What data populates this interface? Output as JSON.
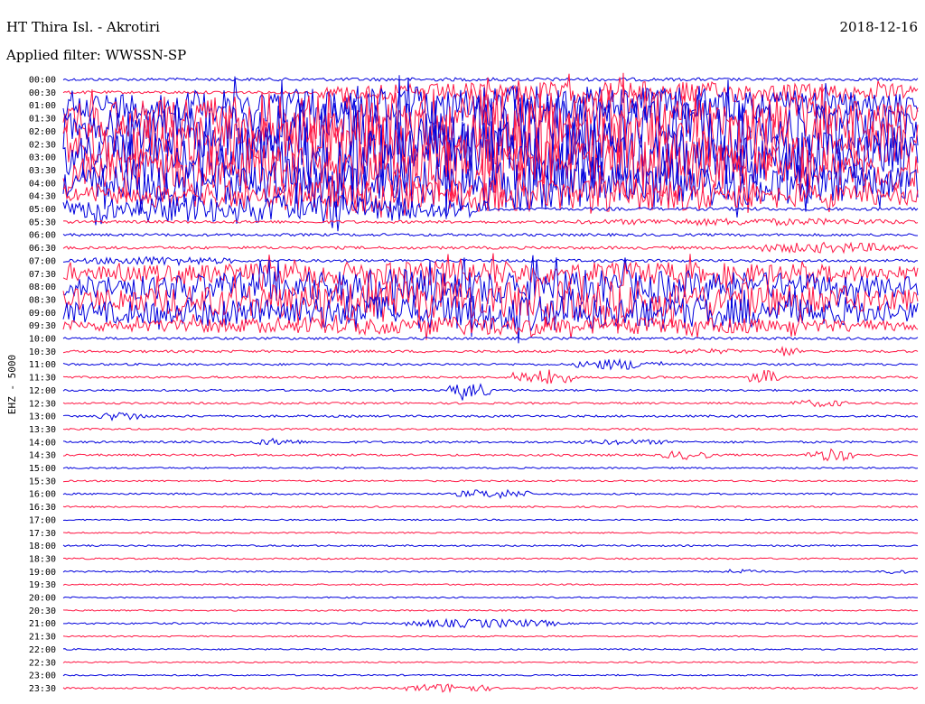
{
  "header": {
    "station": "HT Thira Isl. - Akrotiri",
    "date": "2018-12-16",
    "filter": "Applied filter: WWSSN-SP"
  },
  "channel_label": "EHZ - 5000",
  "colors": {
    "trace_a": "#0000dd",
    "trace_b": "#ff1744",
    "text": "#000000",
    "background": "#ffffff"
  },
  "chart_data": {
    "type": "line",
    "title": "HT Thira Isl. - Akrotiri",
    "subtitle": "Applied filter: WWSSN-SP",
    "ylabel": "EHZ - 5000",
    "xlabel": "",
    "grid": false,
    "row_colors": [
      "#0000dd",
      "#ff1744"
    ],
    "row_labels": [
      "00:00",
      "00:30",
      "01:00",
      "01:30",
      "02:00",
      "02:30",
      "03:00",
      "03:30",
      "04:00",
      "04:30",
      "05:00",
      "05:30",
      "06:00",
      "06:30",
      "07:00",
      "07:30",
      "08:00",
      "08:30",
      "09:00",
      "09:30",
      "10:00",
      "10:30",
      "11:00",
      "11:30",
      "12:00",
      "12:30",
      "13:00",
      "13:30",
      "14:00",
      "14:30",
      "15:00",
      "15:30",
      "16:00",
      "16:30",
      "17:00",
      "17:30",
      "18:00",
      "18:30",
      "19:00",
      "19:30",
      "20:00",
      "20:30",
      "21:00",
      "21:30",
      "22:00",
      "22:30",
      "23:00",
      "23:30"
    ],
    "activity": [
      {
        "row": 0,
        "level": 1.6,
        "bursts": [
          {
            "start": 0.0,
            "end": 1.0,
            "amp": 2
          }
        ]
      },
      {
        "row": 1,
        "level": 1.6,
        "bursts": [
          {
            "start": 0.3,
            "end": 1.0,
            "amp": 12
          }
        ]
      },
      {
        "row": 2,
        "level": 2.0,
        "bursts": [
          {
            "start": 0.0,
            "end": 1.0,
            "amp": 22
          }
        ]
      },
      {
        "row": 3,
        "level": 2.0,
        "bursts": [
          {
            "start": 0.0,
            "end": 1.0,
            "amp": 34
          }
        ]
      },
      {
        "row": 4,
        "level": 2.0,
        "bursts": [
          {
            "start": 0.0,
            "end": 1.0,
            "amp": 40
          }
        ]
      },
      {
        "row": 5,
        "level": 2.0,
        "bursts": [
          {
            "start": 0.0,
            "end": 1.0,
            "amp": 40
          }
        ]
      },
      {
        "row": 6,
        "level": 2.0,
        "bursts": [
          {
            "start": 0.0,
            "end": 1.0,
            "amp": 40
          }
        ]
      },
      {
        "row": 7,
        "level": 2.0,
        "bursts": [
          {
            "start": 0.0,
            "end": 1.0,
            "amp": 36
          }
        ]
      },
      {
        "row": 8,
        "level": 2.0,
        "bursts": [
          {
            "start": 0.0,
            "end": 1.0,
            "amp": 30
          }
        ]
      },
      {
        "row": 9,
        "level": 2.0,
        "bursts": [
          {
            "start": 0.0,
            "end": 1.0,
            "amp": 18
          }
        ]
      },
      {
        "row": 10,
        "level": 1.8,
        "bursts": [
          {
            "start": 0.0,
            "end": 0.5,
            "amp": 16
          }
        ]
      },
      {
        "row": 11,
        "level": 1.6,
        "bursts": [
          {
            "start": 0.6,
            "end": 1.0,
            "amp": 4
          }
        ]
      },
      {
        "row": 12,
        "level": 1.5,
        "bursts": []
      },
      {
        "row": 13,
        "level": 1.6,
        "bursts": [
          {
            "start": 0.8,
            "end": 0.99,
            "amp": 6
          }
        ]
      },
      {
        "row": 14,
        "level": 1.6,
        "bursts": [
          {
            "start": 0.02,
            "end": 0.2,
            "amp": 5
          }
        ]
      },
      {
        "row": 15,
        "level": 1.8,
        "bursts": [
          {
            "start": 0.0,
            "end": 1.0,
            "amp": 14
          }
        ]
      },
      {
        "row": 16,
        "level": 1.8,
        "bursts": [
          {
            "start": 0.0,
            "end": 1.0,
            "amp": 20
          }
        ]
      },
      {
        "row": 17,
        "level": 1.8,
        "bursts": [
          {
            "start": 0.0,
            "end": 1.0,
            "amp": 22
          }
        ]
      },
      {
        "row": 18,
        "level": 1.8,
        "bursts": [
          {
            "start": 0.0,
            "end": 1.0,
            "amp": 20
          }
        ]
      },
      {
        "row": 19,
        "level": 1.6,
        "bursts": [
          {
            "start": 0.0,
            "end": 1.0,
            "amp": 10
          }
        ]
      },
      {
        "row": 20,
        "level": 1.4,
        "bursts": []
      },
      {
        "row": 21,
        "level": 1.4,
        "bursts": [
          {
            "start": 0.83,
            "end": 0.86,
            "amp": 6
          },
          {
            "start": 0.7,
            "end": 0.8,
            "amp": 3
          }
        ]
      },
      {
        "row": 22,
        "level": 1.2,
        "bursts": [
          {
            "start": 0.6,
            "end": 0.7,
            "amp": 6
          }
        ]
      },
      {
        "row": 23,
        "level": 1.2,
        "bursts": [
          {
            "start": 0.52,
            "end": 0.6,
            "amp": 8
          },
          {
            "start": 0.8,
            "end": 0.84,
            "amp": 8
          }
        ]
      },
      {
        "row": 24,
        "level": 1.1,
        "bursts": [
          {
            "start": 0.45,
            "end": 0.5,
            "amp": 8
          }
        ]
      },
      {
        "row": 25,
        "level": 1.1,
        "bursts": [
          {
            "start": 0.85,
            "end": 0.92,
            "amp": 4
          }
        ]
      },
      {
        "row": 26,
        "level": 1.2,
        "bursts": [
          {
            "start": 0.04,
            "end": 0.1,
            "amp": 5
          }
        ]
      },
      {
        "row": 27,
        "level": 1.0,
        "bursts": []
      },
      {
        "row": 28,
        "level": 1.2,
        "bursts": [
          {
            "start": 0.22,
            "end": 0.28,
            "amp": 4
          },
          {
            "start": 0.6,
            "end": 0.72,
            "amp": 3
          }
        ]
      },
      {
        "row": 29,
        "level": 1.2,
        "bursts": [
          {
            "start": 0.7,
            "end": 0.76,
            "amp": 5
          },
          {
            "start": 0.87,
            "end": 0.93,
            "amp": 7
          }
        ]
      },
      {
        "row": 30,
        "level": 0.9,
        "bursts": []
      },
      {
        "row": 31,
        "level": 0.9,
        "bursts": []
      },
      {
        "row": 32,
        "level": 1.0,
        "bursts": [
          {
            "start": 0.46,
            "end": 0.55,
            "amp": 5
          }
        ]
      },
      {
        "row": 33,
        "level": 0.9,
        "bursts": []
      },
      {
        "row": 34,
        "level": 0.8,
        "bursts": []
      },
      {
        "row": 35,
        "level": 0.8,
        "bursts": []
      },
      {
        "row": 36,
        "level": 0.9,
        "bursts": []
      },
      {
        "row": 37,
        "level": 0.9,
        "bursts": []
      },
      {
        "row": 38,
        "level": 0.9,
        "bursts": [
          {
            "start": 0.77,
            "end": 0.82,
            "amp": 3
          },
          {
            "start": 0.96,
            "end": 0.99,
            "amp": 3
          }
        ]
      },
      {
        "row": 39,
        "level": 0.8,
        "bursts": []
      },
      {
        "row": 40,
        "level": 0.8,
        "bursts": []
      },
      {
        "row": 41,
        "level": 0.8,
        "bursts": []
      },
      {
        "row": 42,
        "level": 1.0,
        "bursts": [
          {
            "start": 0.4,
            "end": 0.58,
            "amp": 5
          }
        ]
      },
      {
        "row": 43,
        "level": 0.8,
        "bursts": []
      },
      {
        "row": 44,
        "level": 0.8,
        "bursts": []
      },
      {
        "row": 45,
        "level": 0.8,
        "bursts": []
      },
      {
        "row": 46,
        "level": 0.8,
        "bursts": []
      },
      {
        "row": 47,
        "level": 1.0,
        "bursts": [
          {
            "start": 0.4,
            "end": 0.5,
            "amp": 5
          }
        ]
      }
    ]
  }
}
